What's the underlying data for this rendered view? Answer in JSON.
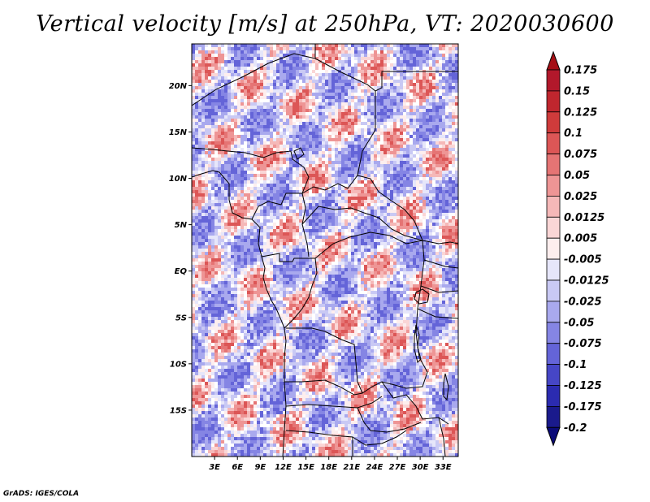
{
  "title": "Vertical velocity [m/s] at 250hPa, VT: 2020030600",
  "credit": "GrADS: IGES/COLA",
  "map": {
    "lon_range": [
      0,
      35
    ],
    "lat_range": [
      -20,
      24.5
    ],
    "lat_ticks": [
      {
        "lat": 20,
        "label": "20N"
      },
      {
        "lat": 15,
        "label": "15N"
      },
      {
        "lat": 10,
        "label": "10N"
      },
      {
        "lat": 5,
        "label": "5N"
      },
      {
        "lat": 0,
        "label": "EQ"
      },
      {
        "lat": -5,
        "label": "5S"
      },
      {
        "lat": -10,
        "label": "10S"
      },
      {
        "lat": -15,
        "label": "15S"
      }
    ],
    "lon_ticks": [
      {
        "lon": 3,
        "label": "3E"
      },
      {
        "lon": 6,
        "label": "6E"
      },
      {
        "lon": 9,
        "label": "9E"
      },
      {
        "lon": 12,
        "label": "12E"
      },
      {
        "lon": 15,
        "label": "15E"
      },
      {
        "lon": 18,
        "label": "18E"
      },
      {
        "lon": 21,
        "label": "21E"
      },
      {
        "lon": 24,
        "label": "24E"
      },
      {
        "lon": 27,
        "label": "27E"
      },
      {
        "lon": 30,
        "label": "30E"
      },
      {
        "lon": 33,
        "label": "33E"
      }
    ]
  },
  "colorbar": {
    "levels": [
      {
        "label": "0.175",
        "color": "#b2182b"
      },
      {
        "label": "0.15",
        "color": "#c0262e"
      },
      {
        "label": "0.125",
        "color": "#cf3b3b"
      },
      {
        "label": "0.1",
        "color": "#dc5656"
      },
      {
        "label": "0.075",
        "color": "#e57474"
      },
      {
        "label": "0.05",
        "color": "#ee9595"
      },
      {
        "label": "0.025",
        "color": "#f5b8b8"
      },
      {
        "label": "0.0125",
        "color": "#fad6d6"
      },
      {
        "label": "0.005",
        "color": "#fdeeee"
      },
      {
        "label": "-0.005",
        "color": "#ffffff"
      },
      {
        "label": "-0.0125",
        "color": "#e6e6fa"
      },
      {
        "label": "-0.025",
        "color": "#c9c9f4"
      },
      {
        "label": "-0.05",
        "color": "#a9a9ee"
      },
      {
        "label": "-0.075",
        "color": "#8585e4"
      },
      {
        "label": "-0.1",
        "color": "#6464d8"
      },
      {
        "label": "-0.125",
        "color": "#4646c6"
      },
      {
        "label": "-0.175",
        "color": "#2b2bb0"
      },
      {
        "label": "-0.2",
        "color": "#1a1a8c"
      }
    ],
    "upper_arrow_color": "#a50f15",
    "lower_arrow_color": "#0b0b78"
  }
}
